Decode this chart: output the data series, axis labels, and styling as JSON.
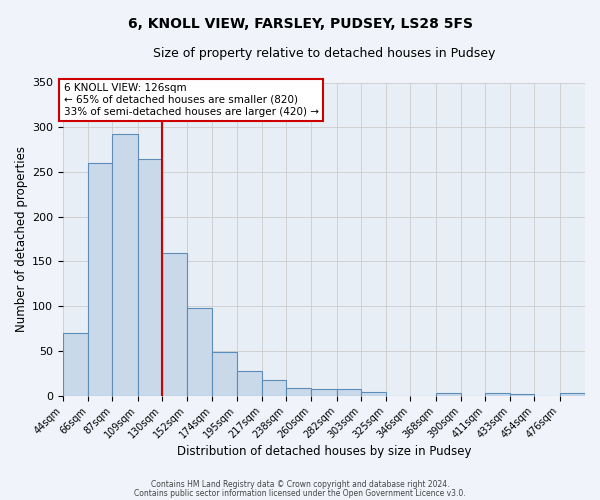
{
  "title": "6, KNOLL VIEW, FARSLEY, PUDSEY, LS28 5FS",
  "subtitle": "Size of property relative to detached houses in Pudsey",
  "xlabel": "Distribution of detached houses by size in Pudsey",
  "ylabel": "Number of detached properties",
  "bin_labels": [
    "44sqm",
    "66sqm",
    "87sqm",
    "109sqm",
    "130sqm",
    "152sqm",
    "174sqm",
    "195sqm",
    "217sqm",
    "238sqm",
    "260sqm",
    "282sqm",
    "303sqm",
    "325sqm",
    "346sqm",
    "368sqm",
    "390sqm",
    "411sqm",
    "433sqm",
    "454sqm",
    "476sqm"
  ],
  "bin_edges": [
    44,
    66,
    87,
    109,
    130,
    152,
    174,
    195,
    217,
    238,
    260,
    282,
    303,
    325,
    346,
    368,
    390,
    411,
    433,
    454,
    476
  ],
  "bar_heights": [
    70,
    260,
    293,
    265,
    160,
    98,
    49,
    28,
    18,
    9,
    7,
    7,
    4,
    0,
    0,
    3,
    0,
    3,
    2,
    0,
    3
  ],
  "bar_color": "#c9d9ea",
  "bar_edgecolor": "#5b8db8",
  "bar_linewidth": 0.8,
  "vline_x": 130,
  "vline_color": "#cc0000",
  "vline_linewidth": 1.5,
  "ylim": [
    0,
    350
  ],
  "yticks": [
    0,
    50,
    100,
    150,
    200,
    250,
    300,
    350
  ],
  "annotation_title": "6 KNOLL VIEW: 126sqm",
  "annotation_line1": "← 65% of detached houses are smaller (820)",
  "annotation_line2": "33% of semi-detached houses are larger (420) →",
  "annotation_box_facecolor": "#ffffff",
  "annotation_box_edgecolor": "#cc0000",
  "grid_color": "#cccccc",
  "fig_bg_color": "#f0f4fa",
  "plot_bg_color": "#e8eef6",
  "footer1": "Contains HM Land Registry data © Crown copyright and database right 2024.",
  "footer2": "Contains public sector information licensed under the Open Government Licence v3.0.",
  "title_fontsize": 10,
  "subtitle_fontsize": 9,
  "xlabel_fontsize": 8.5,
  "ylabel_fontsize": 8.5,
  "tick_fontsize": 7,
  "ytick_fontsize": 8,
  "ann_fontsize": 7.5,
  "footer_fontsize": 5.5
}
